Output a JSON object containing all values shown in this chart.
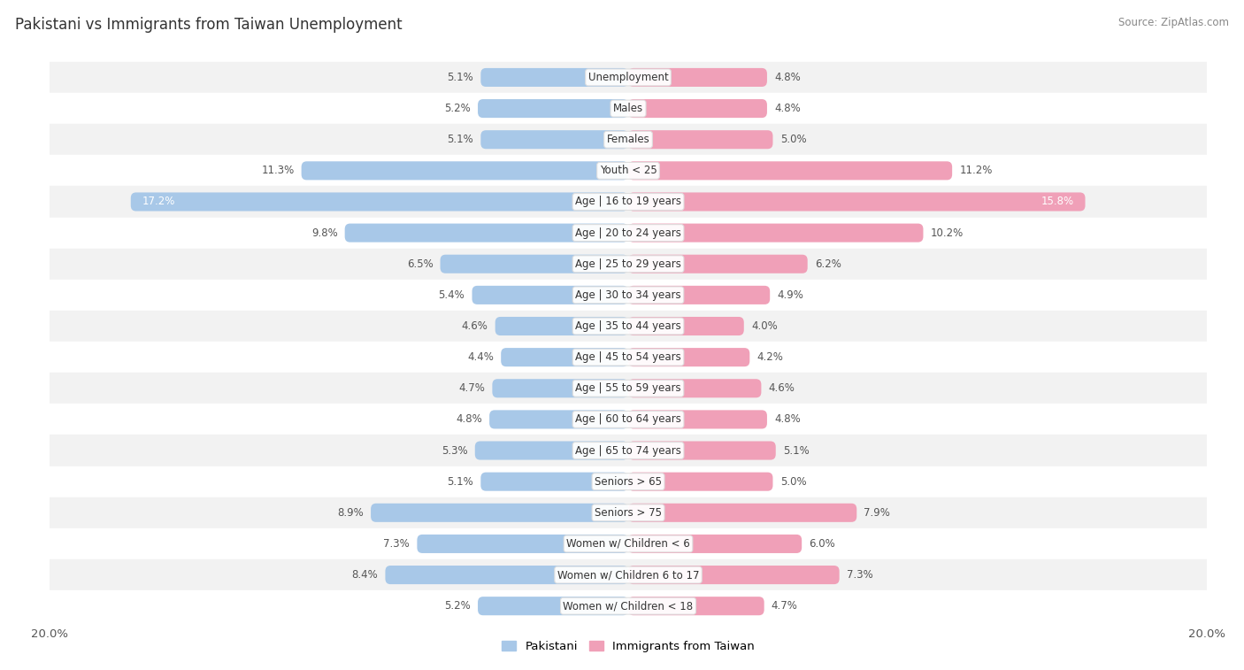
{
  "title": "Pakistani vs Immigrants from Taiwan Unemployment",
  "source": "Source: ZipAtlas.com",
  "categories": [
    "Unemployment",
    "Males",
    "Females",
    "Youth < 25",
    "Age | 16 to 19 years",
    "Age | 20 to 24 years",
    "Age | 25 to 29 years",
    "Age | 30 to 34 years",
    "Age | 35 to 44 years",
    "Age | 45 to 54 years",
    "Age | 55 to 59 years",
    "Age | 60 to 64 years",
    "Age | 65 to 74 years",
    "Seniors > 65",
    "Seniors > 75",
    "Women w/ Children < 6",
    "Women w/ Children 6 to 17",
    "Women w/ Children < 18"
  ],
  "pakistani": [
    5.1,
    5.2,
    5.1,
    11.3,
    17.2,
    9.8,
    6.5,
    5.4,
    4.6,
    4.4,
    4.7,
    4.8,
    5.3,
    5.1,
    8.9,
    7.3,
    8.4,
    5.2
  ],
  "taiwan": [
    4.8,
    4.8,
    5.0,
    11.2,
    15.8,
    10.2,
    6.2,
    4.9,
    4.0,
    4.2,
    4.6,
    4.8,
    5.1,
    5.0,
    7.9,
    6.0,
    7.3,
    4.7
  ],
  "pakistani_color": "#a8c8e8",
  "taiwan_color": "#f0a0b8",
  "row_colors": [
    "#f2f2f2",
    "#ffffff"
  ],
  "axis_max": 20.0,
  "label_fontsize": 8.5,
  "title_fontsize": 12,
  "source_fontsize": 8.5,
  "cat_fontsize": 8.5,
  "legend_pakistani": "Pakistani",
  "legend_taiwan": "Immigrants from Taiwan",
  "value_color": "#555555",
  "value_inside_color": "#ffffff"
}
